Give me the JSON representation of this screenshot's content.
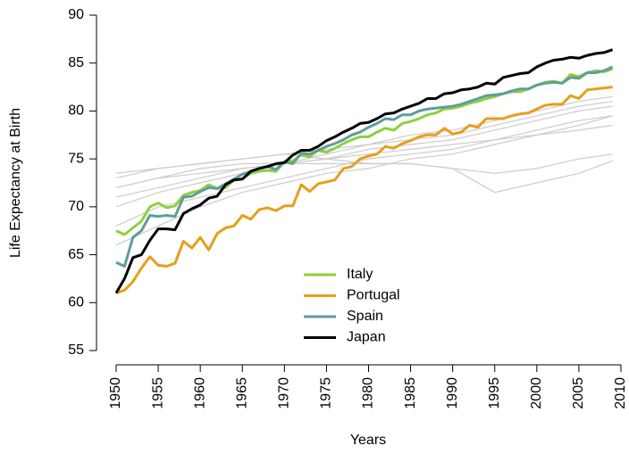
{
  "chart_data": {
    "type": "line",
    "xlabel": "Years",
    "ylabel": "Life Expectancy at Birth",
    "x": [
      1950,
      1951,
      1952,
      1953,
      1954,
      1955,
      1956,
      1957,
      1958,
      1959,
      1960,
      1961,
      1962,
      1963,
      1964,
      1965,
      1966,
      1967,
      1968,
      1969,
      1970,
      1971,
      1972,
      1973,
      1974,
      1975,
      1976,
      1977,
      1978,
      1979,
      1980,
      1981,
      1982,
      1983,
      1984,
      1985,
      1986,
      1987,
      1988,
      1989,
      1990,
      1991,
      1992,
      1993,
      1994,
      1995,
      1996,
      1997,
      1998,
      1999,
      2000,
      2001,
      2002,
      2003,
      2004,
      2005,
      2006,
      2007,
      2008,
      2009
    ],
    "series": [
      {
        "name": "Italy",
        "color": "#8fcf3c",
        "values": [
          67.5,
          67.1,
          67.8,
          68.5,
          70.0,
          70.4,
          69.9,
          70.1,
          71.2,
          71.5,
          71.7,
          72.3,
          71.9,
          72.0,
          72.8,
          72.9,
          73.5,
          73.7,
          73.8,
          73.7,
          74.7,
          74.8,
          75.4,
          75.2,
          75.9,
          75.7,
          76.1,
          76.6,
          77.0,
          77.3,
          77.3,
          77.8,
          78.2,
          78.0,
          78.7,
          78.9,
          79.2,
          79.6,
          79.8,
          80.2,
          80.3,
          80.5,
          80.8,
          81.0,
          81.3,
          81.5,
          81.8,
          82.0,
          82.0,
          82.3,
          82.7,
          83.0,
          83.1,
          82.9,
          83.8,
          83.6,
          84.0,
          84.2,
          84.1,
          84.4
        ]
      },
      {
        "name": "Portugal",
        "color": "#e69f1a",
        "values": [
          61.0,
          61.3,
          62.2,
          63.6,
          64.8,
          63.9,
          63.8,
          64.1,
          66.4,
          65.7,
          66.8,
          65.5,
          67.2,
          67.8,
          68.0,
          69.1,
          68.7,
          69.7,
          69.9,
          69.6,
          70.1,
          70.1,
          72.3,
          71.6,
          72.4,
          72.6,
          72.8,
          74.0,
          74.2,
          75.0,
          75.3,
          75.5,
          76.3,
          76.1,
          76.6,
          76.9,
          77.3,
          77.5,
          77.5,
          78.2,
          77.6,
          77.8,
          78.5,
          78.3,
          79.2,
          79.2,
          79.2,
          79.5,
          79.7,
          79.8,
          80.2,
          80.6,
          80.7,
          80.7,
          81.6,
          81.3,
          82.2,
          82.3,
          82.4,
          82.5
        ]
      },
      {
        "name": "Spain",
        "color": "#5f9e9a",
        "values": [
          64.2,
          63.8,
          66.8,
          67.5,
          69.1,
          69.0,
          69.1,
          69.0,
          71.0,
          71.1,
          71.6,
          72.0,
          71.9,
          72.4,
          72.9,
          73.4,
          73.7,
          74.0,
          74.2,
          73.9,
          74.7,
          74.5,
          75.6,
          75.5,
          75.9,
          76.3,
          76.6,
          77.0,
          77.5,
          77.8,
          78.3,
          78.7,
          79.2,
          79.1,
          79.6,
          79.6,
          80.0,
          80.2,
          80.3,
          80.4,
          80.5,
          80.7,
          81.0,
          81.3,
          81.6,
          81.7,
          81.8,
          82.1,
          82.3,
          82.3,
          82.7,
          82.9,
          83.0,
          82.9,
          83.5,
          83.4,
          84.0,
          84.0,
          84.2,
          84.6
        ]
      },
      {
        "name": "Japan",
        "color": "#000000",
        "values": [
          61.0,
          62.5,
          64.7,
          65.0,
          66.5,
          67.7,
          67.7,
          67.6,
          69.3,
          69.8,
          70.2,
          70.9,
          71.1,
          72.3,
          72.8,
          72.9,
          73.7,
          74.0,
          74.2,
          74.5,
          74.6,
          75.4,
          75.9,
          75.9,
          76.3,
          76.9,
          77.3,
          77.8,
          78.2,
          78.7,
          78.8,
          79.2,
          79.7,
          79.8,
          80.2,
          80.5,
          80.8,
          81.3,
          81.3,
          81.8,
          81.9,
          82.2,
          82.3,
          82.5,
          82.9,
          82.8,
          83.5,
          83.7,
          83.9,
          84.0,
          84.6,
          85.0,
          85.3,
          85.4,
          85.6,
          85.5,
          85.8,
          86.0,
          86.1,
          86.4
        ]
      }
    ],
    "background_color": "#cccccc",
    "background_x": [
      1950,
      1955,
      1960,
      1965,
      1970,
      1975,
      1980,
      1985,
      1990,
      1995,
      2000,
      2005,
      2009
    ],
    "background_series": [
      {
        "values": [
          73.5,
          74,
          74.5,
          75,
          75.5,
          76,
          76.5,
          77,
          77.5,
          78.5,
          79.5,
          80.5,
          81
        ]
      },
      {
        "values": [
          72,
          73,
          73.5,
          74,
          74.5,
          75,
          76,
          76.5,
          77,
          78,
          79,
          80,
          80.5
        ]
      },
      {
        "values": [
          70,
          71.5,
          72.5,
          73.5,
          74.5,
          75.5,
          76.5,
          77.5,
          78,
          79,
          80,
          81,
          81.5
        ]
      },
      {
        "values": [
          68,
          70,
          71,
          72,
          73,
          74,
          75,
          75.5,
          76,
          77,
          78,
          79,
          79.5
        ]
      },
      {
        "values": [
          71,
          72,
          73,
          74,
          74.5,
          75,
          75.5,
          76,
          76.5,
          77,
          77.5,
          78,
          78.5
        ]
      },
      {
        "values": [
          73,
          74,
          74.5,
          75,
          75.5,
          75,
          74.5,
          74.5,
          74,
          73.5,
          74,
          75,
          75.5
        ]
      },
      {
        "values": [
          72,
          73,
          74,
          74.5,
          74.5,
          74.5,
          74.5,
          74.5,
          74,
          71.5,
          72.5,
          73.5,
          74.8
        ]
      },
      {
        "values": [
          66,
          68,
          70,
          71.5,
          72.5,
          73.5,
          74,
          75,
          75.5,
          76.5,
          77.5,
          78.5,
          79.5
        ]
      }
    ],
    "xlim": [
      1950,
      2010
    ],
    "ylim": [
      55,
      90
    ],
    "xticks": [
      1950,
      1955,
      1960,
      1965,
      1970,
      1975,
      1980,
      1985,
      1990,
      1995,
      2000,
      2005,
      2010
    ],
    "yticks": [
      55,
      60,
      65,
      70,
      75,
      80,
      85,
      90
    ]
  }
}
